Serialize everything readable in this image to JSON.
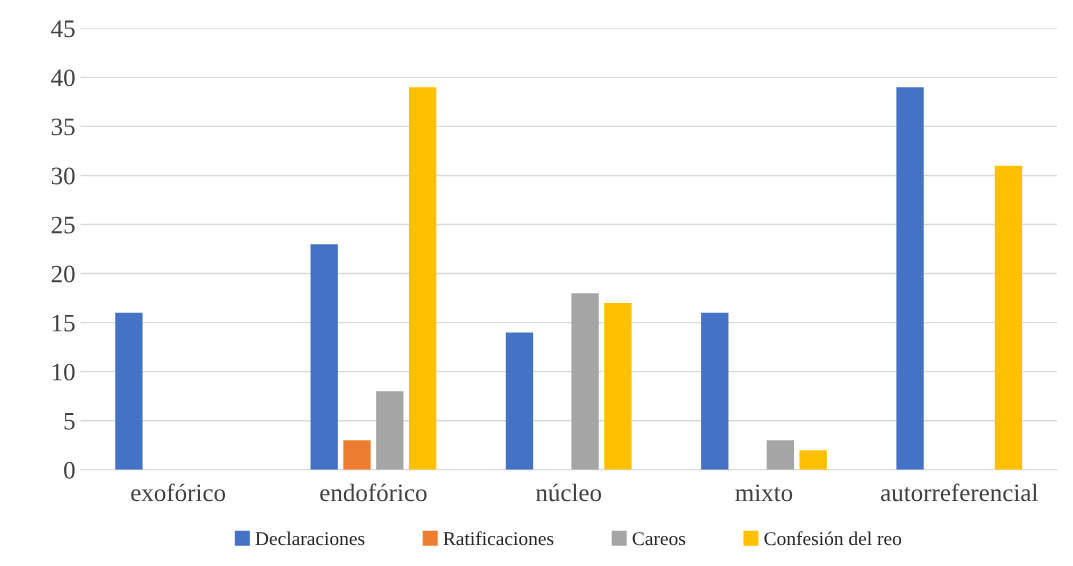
{
  "chart_data": {
    "type": "bar",
    "categories": [
      "exofórico",
      "endofórico",
      "núcleo",
      "mixto",
      "autorreferencial"
    ],
    "series": [
      {
        "name": "Declaraciones",
        "color": "#4472c4",
        "values": [
          16,
          23,
          14,
          16,
          39
        ]
      },
      {
        "name": "Ratificaciones",
        "color": "#ed7d31",
        "values": [
          null,
          3,
          null,
          null,
          null
        ]
      },
      {
        "name": "Careos",
        "color": "#a5a5a5",
        "values": [
          null,
          8,
          18,
          3,
          null
        ]
      },
      {
        "name": "Confesión del reo",
        "color": "#ffc000",
        "values": [
          null,
          39,
          17,
          2,
          31
        ]
      }
    ],
    "ylim": [
      0,
      45
    ],
    "yticks": [
      0,
      5,
      10,
      15,
      20,
      25,
      30,
      35,
      40,
      45
    ],
    "grid": "y",
    "legend": "bottom"
  }
}
